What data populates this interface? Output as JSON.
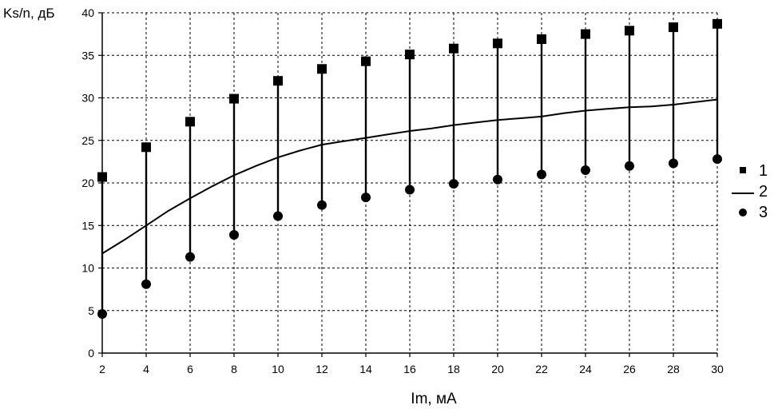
{
  "chart_data": {
    "type": "line",
    "title": "",
    "ylabel": "Ks/n, дБ",
    "xlabel": "Im, мА",
    "xlim": [
      2,
      30
    ],
    "ylim": [
      0,
      40
    ],
    "xticks": [
      2,
      4,
      6,
      8,
      10,
      12,
      14,
      16,
      18,
      20,
      22,
      24,
      26,
      28,
      30
    ],
    "yticks": [
      0,
      5,
      10,
      15,
      20,
      25,
      30,
      35,
      40
    ],
    "grid": true,
    "legend_placement": "right",
    "series": [
      {
        "name": "1",
        "marker": "square",
        "x": [
          2,
          4,
          6,
          8,
          10,
          12,
          14,
          16,
          18,
          20,
          22,
          24,
          26,
          28,
          30
        ],
        "y": [
          20.7,
          24.2,
          27.2,
          29.9,
          32.0,
          33.4,
          34.3,
          35.1,
          35.8,
          36.4,
          36.9,
          37.5,
          37.9,
          38.3,
          38.7
        ]
      },
      {
        "name": "2",
        "marker": "line",
        "x": [
          2,
          3,
          4,
          5,
          6,
          7,
          8,
          9,
          10,
          11,
          12,
          13,
          14,
          15,
          16,
          17,
          18,
          19,
          20,
          21,
          22,
          23,
          24,
          25,
          26,
          27,
          28,
          29,
          30
        ],
        "y": [
          11.7,
          13.3,
          15.0,
          16.7,
          18.2,
          19.6,
          20.9,
          22.0,
          23.0,
          23.8,
          24.5,
          24.9,
          25.3,
          25.7,
          26.1,
          26.4,
          26.8,
          27.1,
          27.4,
          27.6,
          27.8,
          28.2,
          28.5,
          28.7,
          28.9,
          29.0,
          29.2,
          29.5,
          29.8
        ]
      },
      {
        "name": "3",
        "marker": "circle",
        "x": [
          2,
          4,
          6,
          8,
          10,
          12,
          14,
          16,
          18,
          20,
          22,
          24,
          26,
          28,
          30
        ],
        "y": [
          4.6,
          8.1,
          11.3,
          13.9,
          16.1,
          17.4,
          18.3,
          19.2,
          19.9,
          20.4,
          21.0,
          21.5,
          22.0,
          22.3,
          22.8
        ]
      }
    ],
    "drop_lines": "vertical lines connect series 1 and series 3 at each x"
  }
}
